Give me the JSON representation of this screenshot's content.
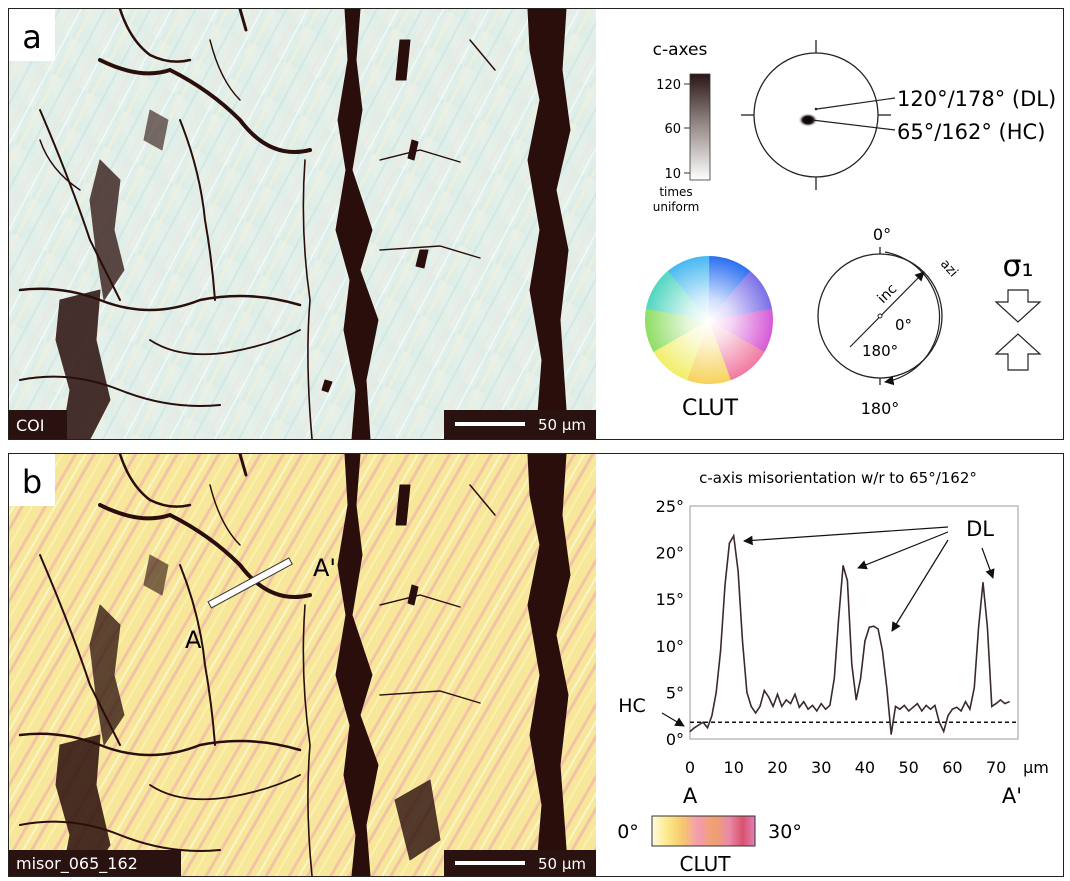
{
  "panel_a": {
    "letter": "a",
    "map_label": "COI",
    "scale_bar_label": "50 µm",
    "legend": {
      "title": "c-axes",
      "ticks": [
        "120",
        "60",
        "10"
      ],
      "caption_line1": "times",
      "caption_line2": "uniform"
    },
    "pole_figure": {
      "label_dl": "120°/178° (DL)",
      "label_hc": "65°/162° (HC)"
    },
    "clut": {
      "label": "CLUT"
    },
    "key": {
      "top_label": "0°",
      "bottom_label": "180°",
      "azi_label": "azi",
      "inc_label": "inc",
      "center_label": "0°",
      "inner_label": "180°"
    },
    "stress": {
      "label": "σ₁"
    }
  },
  "panel_b": {
    "letter": "b",
    "map_label": "misor_065_162",
    "scale_bar_label": "50 µm",
    "profile_start": "A",
    "profile_end": "A'",
    "clut": {
      "min_label": "0°",
      "max_label": "30°",
      "label": "CLUT"
    }
  },
  "chart_data": {
    "type": "line",
    "title": "c-axis misorientation w/r to 65°/162°",
    "xlabel": "µm",
    "ylabel": "",
    "xlim": [
      0,
      75
    ],
    "ylim": [
      0,
      25
    ],
    "x_ticks": [
      "0",
      "10",
      "20",
      "30",
      "40",
      "50",
      "60",
      "70"
    ],
    "y_ticks": [
      "0°",
      "5°",
      "10°",
      "15°",
      "20°",
      "25°"
    ],
    "x_end_labels": [
      "A",
      "A'"
    ],
    "reference_line": {
      "value": 1.8,
      "label": "HC"
    },
    "annotation_label": "DL",
    "series": [
      {
        "x": [
          0,
          1,
          2,
          3,
          4,
          5,
          6,
          7,
          8,
          9,
          10,
          11,
          12,
          13,
          14,
          15,
          16,
          17,
          18,
          19,
          20,
          21,
          22,
          23,
          24,
          25,
          26,
          27,
          28,
          29,
          30,
          31,
          32,
          33,
          34,
          35,
          36,
          37,
          38,
          39,
          40,
          41,
          42,
          43,
          44,
          45,
          46,
          47,
          48,
          49,
          50,
          51,
          52,
          53,
          54,
          55,
          56,
          57,
          58,
          59,
          60,
          61,
          62,
          63,
          64,
          65,
          66,
          67,
          68,
          69,
          70,
          71,
          72,
          73
        ],
        "values": [
          0.8,
          1.2,
          1.5,
          1.8,
          1.2,
          2.5,
          5.0,
          9.5,
          16.5,
          21.0,
          21.8,
          18.0,
          10.5,
          5.0,
          3.5,
          2.8,
          3.5,
          5.2,
          4.5,
          3.5,
          4.8,
          3.5,
          4.2,
          3.8,
          4.8,
          3.4,
          4.0,
          3.2,
          3.6,
          3.0,
          3.8,
          3.2,
          3.6,
          6.5,
          13.0,
          18.6,
          17.0,
          8.0,
          4.2,
          6.5,
          10.5,
          12.0,
          12.1,
          11.8,
          9.5,
          5.5,
          0.5,
          3.5,
          3.2,
          3.6,
          3.0,
          3.4,
          3.8,
          3.0,
          3.6,
          3.2,
          3.6,
          1.8,
          0.8,
          2.5,
          3.2,
          3.4,
          3.0,
          4.0,
          3.2,
          5.5,
          12.0,
          16.8,
          12.0,
          3.5,
          3.8,
          4.2,
          3.8,
          4.0
        ]
      }
    ]
  }
}
